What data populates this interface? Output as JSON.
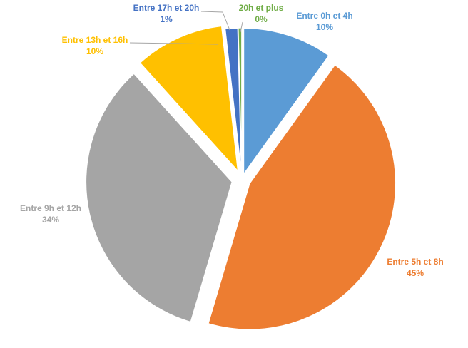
{
  "chart_data": {
    "type": "pie",
    "exploded": true,
    "legend": "none",
    "slices": [
      {
        "label": "Entre 0h et 4h",
        "value": 10,
        "display": "10%",
        "color": "#5B9BD5"
      },
      {
        "label": "Entre 5h et 8h",
        "value": 45,
        "display": "45%",
        "color": "#ED7D31"
      },
      {
        "label": "Entre 9h et 12h",
        "value": 34,
        "display": "34%",
        "color": "#A5A5A5"
      },
      {
        "label": "Entre 13h et 16h",
        "value": 10,
        "display": "10%",
        "color": "#FFC000"
      },
      {
        "label": "Entre 17h et 20h",
        "value": 1.4,
        "display": "1%",
        "color": "#4472C4"
      },
      {
        "label": "20h et plus",
        "value": 0.4,
        "display": "0%",
        "color": "#70AD47"
      }
    ]
  }
}
